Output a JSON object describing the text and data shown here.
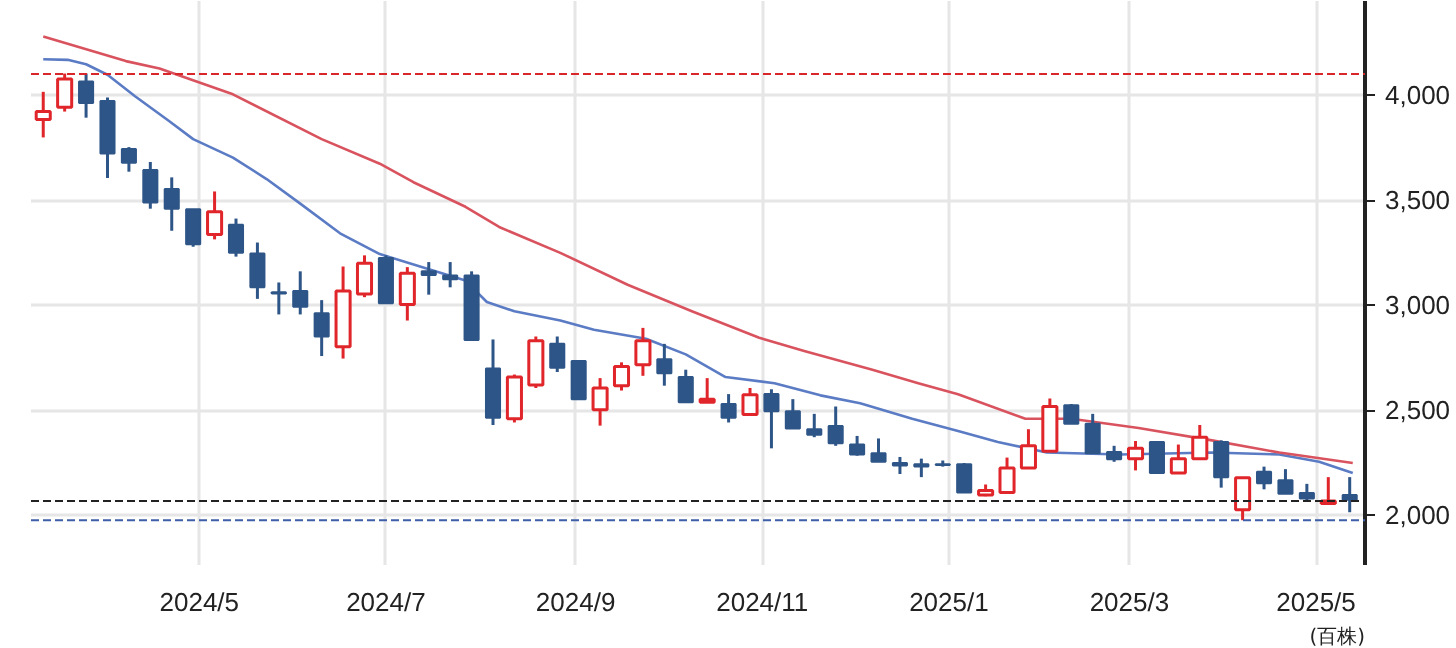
{
  "chart_data": {
    "type": "candlestick",
    "x": [
      "2024-03-11",
      "2024-03-18",
      "2024-03-25",
      "2024-04-01",
      "2024-04-08",
      "2024-04-15",
      "2024-04-22",
      "2024-04-29",
      "2024-05-06",
      "2024-05-13",
      "2024-05-20",
      "2024-05-27",
      "2024-06-03",
      "2024-06-10",
      "2024-06-17",
      "2024-06-24",
      "2024-07-01",
      "2024-07-08",
      "2024-07-15",
      "2024-07-22",
      "2024-07-29",
      "2024-08-05",
      "2024-08-12",
      "2024-08-19",
      "2024-08-26",
      "2024-09-02",
      "2024-09-09",
      "2024-09-16",
      "2024-09-23",
      "2024-09-30",
      "2024-10-07",
      "2024-10-14",
      "2024-10-21",
      "2024-10-28",
      "2024-11-04",
      "2024-11-11",
      "2024-11-18",
      "2024-11-25",
      "2024-12-02",
      "2024-12-09",
      "2024-12-16",
      "2024-12-23",
      "2024-12-30",
      "2025-01-06",
      "2025-01-13",
      "2025-01-20",
      "2025-01-27",
      "2025-02-03",
      "2025-02-10",
      "2025-02-17",
      "2025-02-24",
      "2025-03-03",
      "2025-03-10",
      "2025-03-17",
      "2025-03-24",
      "2025-03-31",
      "2025-04-07",
      "2025-04-14",
      "2025-04-21",
      "2025-04-28",
      "2025-05-05",
      "2025-05-12"
    ],
    "ohlc": [
      [
        3883,
        4015,
        3798,
        3921
      ],
      [
        3942,
        4102,
        3921,
        4076
      ],
      [
        4064,
        4102,
        3892,
        3962
      ],
      [
        3971,
        3988,
        3605,
        3722
      ],
      [
        3743,
        3752,
        3635,
        3678
      ],
      [
        3643,
        3681,
        3459,
        3488
      ],
      [
        3553,
        3608,
        3354,
        3459
      ],
      [
        3456,
        3456,
        3278,
        3290
      ],
      [
        3336,
        3541,
        3313,
        3445
      ],
      [
        3383,
        3412,
        3231,
        3249
      ],
      [
        3246,
        3298,
        3030,
        3085
      ],
      [
        3062,
        3108,
        2956,
        3056
      ],
      [
        3068,
        3161,
        2956,
        2992
      ],
      [
        2962,
        3024,
        2758,
        2851
      ],
      [
        2802,
        3184,
        2746,
        3068
      ],
      [
        3053,
        3237,
        3038,
        3199
      ],
      [
        3225,
        3237,
        3009,
        3009
      ],
      [
        3003,
        3181,
        2927,
        3152
      ],
      [
        3161,
        3205,
        3050,
        3144
      ],
      [
        3141,
        3205,
        3085,
        3123
      ],
      [
        3141,
        3161,
        2834,
        2834
      ],
      [
        2699,
        2837,
        2430,
        2465
      ],
      [
        2460,
        2670,
        2442,
        2658
      ],
      [
        2620,
        2851,
        2606,
        2831
      ],
      [
        2816,
        2851,
        2682,
        2702
      ],
      [
        2734,
        2734,
        2553,
        2553
      ],
      [
        2503,
        2653,
        2427,
        2606
      ],
      [
        2617,
        2728,
        2594,
        2708
      ],
      [
        2717,
        2892,
        2664,
        2831
      ],
      [
        2743,
        2816,
        2617,
        2676
      ],
      [
        2658,
        2693,
        2538,
        2538
      ],
      [
        2538,
        2653,
        2538,
        2553
      ],
      [
        2530,
        2577,
        2442,
        2465
      ],
      [
        2480,
        2606,
        2480,
        2574
      ],
      [
        2577,
        2600,
        2319,
        2495
      ],
      [
        2495,
        2553,
        2413,
        2413
      ],
      [
        2410,
        2483,
        2372,
        2384
      ],
      [
        2425,
        2518,
        2331,
        2343
      ],
      [
        2337,
        2378,
        2284,
        2290
      ],
      [
        2296,
        2366,
        2255,
        2255
      ],
      [
        2249,
        2278,
        2197,
        2237
      ],
      [
        2243,
        2270,
        2182,
        2232
      ],
      [
        2243,
        2261,
        2232,
        2240
      ],
      [
        2243,
        2249,
        2109,
        2109
      ],
      [
        2097,
        2147,
        2091,
        2118
      ],
      [
        2109,
        2275,
        2103,
        2226
      ],
      [
        2226,
        2410,
        2226,
        2331
      ],
      [
        2305,
        2556,
        2305,
        2518
      ],
      [
        2524,
        2530,
        2436,
        2436
      ],
      [
        2436,
        2483,
        2296,
        2296
      ],
      [
        2302,
        2331,
        2255,
        2267
      ],
      [
        2270,
        2354,
        2214,
        2319
      ],
      [
        2349,
        2349,
        2202,
        2202
      ],
      [
        2202,
        2337,
        2202,
        2270
      ],
      [
        2270,
        2430,
        2270,
        2372
      ],
      [
        2349,
        2357,
        2132,
        2182
      ],
      [
        2027,
        2179,
        1977,
        2179
      ],
      [
        2208,
        2232,
        2124,
        2153
      ],
      [
        2167,
        2220,
        2103,
        2103
      ],
      [
        2106,
        2150,
        2065,
        2080
      ],
      [
        2056,
        2182,
        2056,
        2068
      ],
      [
        2097,
        2182,
        2015,
        2074
      ]
    ],
    "colors": [
      "#e0262b",
      "#e0262b",
      "#2e5587",
      "#2e5587",
      "#2e5587",
      "#2e5587",
      "#2e5587",
      "#2e5587",
      "#e0262b",
      "#2e5587",
      "#2e5587",
      "#2e5587",
      "#2e5587",
      "#2e5587",
      "#e0262b",
      "#e0262b",
      "#2e5587",
      "#e0262b",
      "#2e5587",
      "#2e5587",
      "#2e5587",
      "#2e5587",
      "#e0262b",
      "#e0262b",
      "#2e5587",
      "#2e5587",
      "#e0262b",
      "#e0262b",
      "#e0262b",
      "#2e5587",
      "#2e5587",
      "#e0262b",
      "#2e5587",
      "#e0262b",
      "#2e5587",
      "#2e5587",
      "#2e5587",
      "#2e5587",
      "#2e5587",
      "#2e5587",
      "#2e5587",
      "#2e5587",
      "#2e5587",
      "#2e5587",
      "#e0262b",
      "#e0262b",
      "#e0262b",
      "#e0262b",
      "#2e5587",
      "#2e5587",
      "#2e5587",
      "#e0262b",
      "#2e5587",
      "#e0262b",
      "#e0262b",
      "#2e5587",
      "#e0262b",
      "#2e5587",
      "#2e5587",
      "#2e5587",
      "#e0262b",
      "#2e5587"
    ],
    "series": [
      {
        "type": "line",
        "color": "#5b7cc4",
        "x": [
          "2024-03-11",
          "2024-03-19",
          "2024-03-25",
          "2024-04-01",
          "2024-04-10",
          "2024-04-21",
          "2024-04-29",
          "2024-05-12",
          "2024-05-23",
          "2024-06-03",
          "2024-06-16",
          "2024-06-29",
          "2024-07-14",
          "2024-07-27",
          "2024-08-03",
          "2024-08-12",
          "2024-08-27",
          "2024-09-07",
          "2024-09-24",
          "2024-10-07",
          "2024-10-20",
          "2024-11-05",
          "2024-11-20",
          "2024-12-03",
          "2024-12-20",
          "2025-01-04",
          "2025-01-17",
          "2025-02-02",
          "2025-02-26",
          "2025-03-28",
          "2025-04-19",
          "2025-05-02",
          "2025-05-13"
        ],
        "values": [
          4170,
          4167,
          4146,
          4096,
          3994,
          3877,
          3790,
          3702,
          3600,
          3483,
          3342,
          3243,
          3176,
          3117,
          3015,
          2971,
          2927,
          2883,
          2840,
          2766,
          2658,
          2629,
          2571,
          2533,
          2460,
          2401,
          2349,
          2299,
          2290,
          2299,
          2290,
          2255,
          2202
        ]
      },
      {
        "type": "line",
        "color": "#d9535f",
        "x": [
          "2024-03-11",
          "2024-04-07",
          "2024-04-18",
          "2024-05-12",
          "2024-06-10",
          "2024-06-29",
          "2024-07-10",
          "2024-07-27",
          "2024-08-07",
          "2024-08-27",
          "2024-09-18",
          "2024-10-09",
          "2024-10-31",
          "2024-11-15",
          "2024-12-07",
          "2024-12-22",
          "2025-01-04",
          "2025-01-26",
          "2025-02-10",
          "2025-03-04",
          "2025-03-28",
          "2025-04-19",
          "2025-05-13"
        ],
        "values": [
          4278,
          4161,
          4126,
          4003,
          3790,
          3673,
          3585,
          3468,
          3372,
          3249,
          3097,
          2971,
          2845,
          2781,
          2693,
          2629,
          2576,
          2460,
          2460,
          2416,
          2357,
          2299,
          2249
        ]
      }
    ],
    "ref_lines": [
      {
        "axis": "y",
        "value": 4100,
        "color": "#d9262b",
        "line_style": "dashed"
      },
      {
        "axis": "y",
        "value": 2068,
        "color": "#222222",
        "line_style": "dashed"
      },
      {
        "axis": "y",
        "value": 1977,
        "color": "#3e5fa8",
        "line_style": "dashed"
      }
    ],
    "xlim": [
      "2024-03-07",
      "2025-05-17"
    ],
    "xticks": [
      {
        "value": "2024-05-01",
        "label": "2024/5"
      },
      {
        "value": "2024-07-01",
        "label": "2024/7"
      },
      {
        "value": "2024-09-01",
        "label": "2024/9"
      },
      {
        "value": "2024-11-01",
        "label": "2024/11"
      },
      {
        "value": "2025-01-01",
        "label": "2025/1"
      },
      {
        "value": "2025-03-01",
        "label": "2025/3"
      },
      {
        "value": "2025-05-01",
        "label": "2025/5"
      }
    ],
    "ylim": [
      1764,
      4447
    ],
    "yticks": [
      {
        "value": 2000,
        "label": "2,000"
      },
      {
        "value": 2500,
        "label": "2,500"
      },
      {
        "value": 3000,
        "label": "3,000"
      },
      {
        "value": 3500,
        "label": "3,500"
      },
      {
        "value": 4000,
        "label": "4,000"
      }
    ],
    "grid": true,
    "annotations": [
      "(百株)"
    ]
  }
}
